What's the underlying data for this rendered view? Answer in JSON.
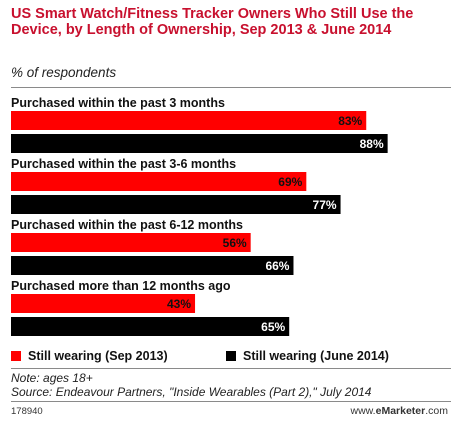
{
  "header": {
    "title": "US Smart Watch/Fitness Tracker Owners Who Still Use the Device, by Length of Ownership, Sep 2013 & June 2014",
    "subtitle": "% of respondents"
  },
  "chart_data": {
    "type": "bar",
    "orientation": "horizontal",
    "title": "US Smart Watch/Fitness Tracker Owners Who Still Use the Device, by Length of Ownership, Sep 2013 & June 2014",
    "subtitle": "% of respondents",
    "categories": [
      "Purchased within the past 3 months",
      "Purchased within the past 3-6 months",
      "Purchased within the past 6-12 months",
      "Purchased more than 12 months ago"
    ],
    "series": [
      {
        "name": "Still wearing (Sep 2013)",
        "values": [
          83,
          69,
          56,
          43
        ],
        "labels": [
          "83%",
          "69%",
          "56%",
          "43%"
        ],
        "color": "#ff0000"
      },
      {
        "name": "Still wearing (June 2014)",
        "values": [
          88,
          77,
          66,
          65
        ],
        "labels": [
          "88%",
          "77%",
          "66%",
          "65%"
        ],
        "color": "#000000"
      }
    ],
    "xlim": [
      0,
      100
    ],
    "grid": false,
    "legend_position": "bottom"
  },
  "legend": {
    "sep2013": "Still wearing (Sep 2013)",
    "june2014": "Still wearing (June 2014)",
    "sep2013_color": "#ff0000",
    "june2014_color": "#000000"
  },
  "notes": {
    "note": "Note: ages 18+",
    "source": "Source: Endeavour Partners, \"Inside Wearables (Part 2),\" July 2014"
  },
  "footer": {
    "chart_id": "178940",
    "site_prefix": "www.",
    "site_brand": "eMarketer",
    "site_suffix": ".com"
  }
}
